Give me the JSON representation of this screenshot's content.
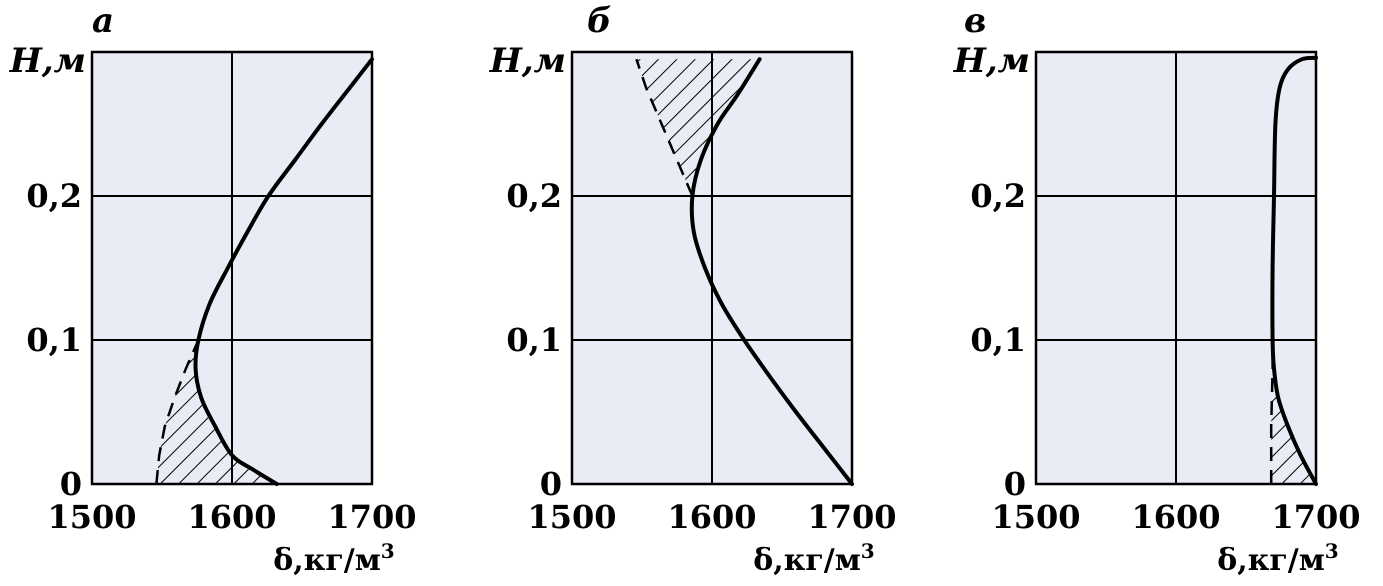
{
  "figure": {
    "background": "#e9ecf4",
    "line_color": "#000000"
  },
  "chart_data": [
    {
      "type": "line",
      "panel_label": "а",
      "ylabel": "H,м",
      "xlabel": "δ,кг/м",
      "xlabel_sup": "3",
      "xlim": [
        1500,
        1700
      ],
      "ylim": [
        0,
        0.3
      ],
      "xticks": [
        "1500",
        "1600",
        "1700"
      ],
      "yticks": [
        "0",
        "0,1",
        "0,2"
      ],
      "xtick_values": [
        1500,
        1600,
        1700
      ],
      "ytick_values": [
        0,
        0.1,
        0.2
      ],
      "grid": true,
      "series": [
        {
          "values": [
            {
              "x": 1632,
              "y": 0.0
            },
            {
              "x": 1615,
              "y": 0.01
            },
            {
              "x": 1600,
              "y": 0.02
            },
            {
              "x": 1588,
              "y": 0.04
            },
            {
              "x": 1578,
              "y": 0.06
            },
            {
              "x": 1574,
              "y": 0.08
            },
            {
              "x": 1576,
              "y": 0.1
            },
            {
              "x": 1584,
              "y": 0.125
            },
            {
              "x": 1597,
              "y": 0.15
            },
            {
              "x": 1611,
              "y": 0.175
            },
            {
              "x": 1626,
              "y": 0.2
            },
            {
              "x": 1645,
              "y": 0.225
            },
            {
              "x": 1664,
              "y": 0.25
            },
            {
              "x": 1684,
              "y": 0.275
            },
            {
              "x": 1700,
              "y": 0.295
            }
          ]
        }
      ],
      "shaded_region": {
        "boundary": [
          {
            "x": 1546,
            "y": 0.0
          },
          {
            "x": 1548,
            "y": 0.02
          },
          {
            "x": 1552,
            "y": 0.04
          },
          {
            "x": 1559,
            "y": 0.06
          },
          {
            "x": 1567,
            "y": 0.08
          },
          {
            "x": 1576,
            "y": 0.1
          }
        ]
      }
    },
    {
      "type": "line",
      "panel_label": "б",
      "ylabel": "H,м",
      "xlabel": "δ,кг/м",
      "xlabel_sup": "3",
      "xlim": [
        1500,
        1700
      ],
      "ylim": [
        0,
        0.3
      ],
      "xticks": [
        "1500",
        "1600",
        "1700"
      ],
      "yticks": [
        "0",
        "0,1",
        "0,2"
      ],
      "xtick_values": [
        1500,
        1600,
        1700
      ],
      "ytick_values": [
        0,
        0.1,
        0.2
      ],
      "grid": true,
      "series": [
        {
          "values": [
            {
              "x": 1700,
              "y": 0.0
            },
            {
              "x": 1680,
              "y": 0.025
            },
            {
              "x": 1660,
              "y": 0.05
            },
            {
              "x": 1641,
              "y": 0.075
            },
            {
              "x": 1623,
              "y": 0.1
            },
            {
              "x": 1607,
              "y": 0.125
            },
            {
              "x": 1595,
              "y": 0.15
            },
            {
              "x": 1587,
              "y": 0.175
            },
            {
              "x": 1586,
              "y": 0.2
            },
            {
              "x": 1592,
              "y": 0.225
            },
            {
              "x": 1604,
              "y": 0.25
            },
            {
              "x": 1618,
              "y": 0.27
            },
            {
              "x": 1634,
              "y": 0.295
            }
          ]
        }
      ],
      "shaded_region": {
        "boundary": [
          {
            "x": 1586,
            "y": 0.2
          },
          {
            "x": 1575,
            "y": 0.225
          },
          {
            "x": 1564,
            "y": 0.25
          },
          {
            "x": 1553,
            "y": 0.275
          },
          {
            "x": 1546,
            "y": 0.295
          }
        ]
      }
    },
    {
      "type": "line",
      "panel_label": "в",
      "ylabel": "H,м",
      "xlabel": "δ,кг/м",
      "xlabel_sup": "3",
      "xlim": [
        1500,
        1700
      ],
      "ylim": [
        0,
        0.3
      ],
      "xticks": [
        "1500",
        "1600",
        "1700"
      ],
      "yticks": [
        "0",
        "0,1",
        "0,2"
      ],
      "xtick_values": [
        1500,
        1600,
        1700
      ],
      "ytick_values": [
        0,
        0.1,
        0.2
      ],
      "grid": true,
      "series": [
        {
          "values": [
            {
              "x": 1700,
              "y": 0.0
            },
            {
              "x": 1689,
              "y": 0.02
            },
            {
              "x": 1680,
              "y": 0.04
            },
            {
              "x": 1673,
              "y": 0.06
            },
            {
              "x": 1670,
              "y": 0.08
            },
            {
              "x": 1669,
              "y": 0.1
            },
            {
              "x": 1669,
              "y": 0.15
            },
            {
              "x": 1670,
              "y": 0.2
            },
            {
              "x": 1671,
              "y": 0.25
            },
            {
              "x": 1674,
              "y": 0.275
            },
            {
              "x": 1680,
              "y": 0.288
            },
            {
              "x": 1690,
              "y": 0.295
            },
            {
              "x": 1700,
              "y": 0.296
            }
          ]
        }
      ],
      "shaded_region": {
        "boundary": [
          {
            "x": 1668,
            "y": 0.0
          },
          {
            "x": 1668,
            "y": 0.04
          },
          {
            "x": 1669,
            "y": 0.08
          },
          {
            "x": 1669,
            "y": 0.1
          }
        ]
      }
    }
  ]
}
